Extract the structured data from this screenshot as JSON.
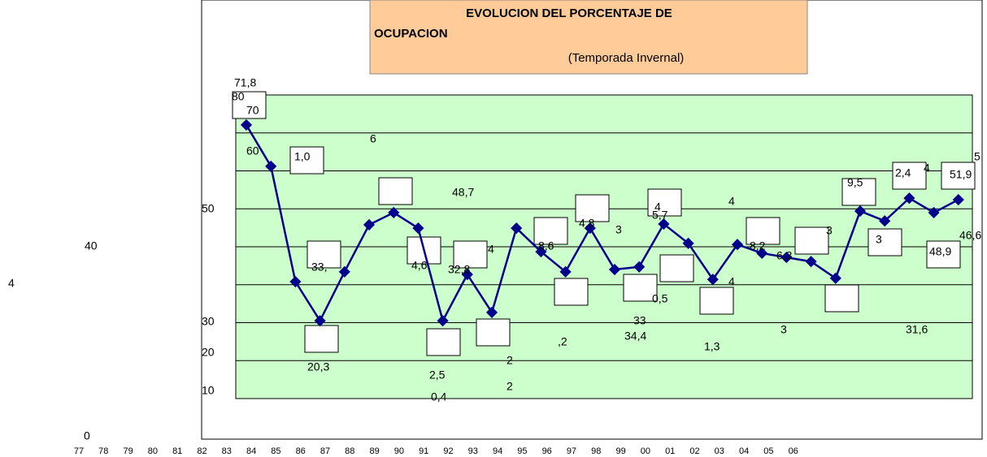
{
  "chart_data": {
    "type": "line",
    "title": "EVOLUCION DEL PORCENTAJE DE",
    "title_line2": "OCUPACION",
    "subtitle": "(Temporada Invernal)",
    "categories": [
      "77",
      "78",
      "79",
      "80",
      "81",
      "82",
      "83",
      "84",
      "85",
      "86",
      "87",
      "88",
      "89",
      "90",
      "91",
      "92",
      "93",
      "94",
      "95",
      "96",
      "97",
      "98",
      "99",
      "00",
      "01",
      "02",
      "03",
      "04",
      "05",
      "06"
    ],
    "series": [
      {
        "color": "#00008b",
        "values": [
          72.1,
          61.2,
          30.8,
          20.5,
          33.4,
          45.8,
          49.0,
          44.9,
          20.5,
          32.7,
          22.7,
          44.9,
          38.7,
          33.4,
          44.9,
          34.0,
          34.7,
          46.0,
          40.9,
          31.4,
          40.6,
          38.3,
          37.2,
          36.1,
          31.7,
          49.4,
          46.8,
          52.8,
          49.0,
          52.4
        ]
      }
    ],
    "ylim": [
      0,
      80
    ],
    "yticks": [
      10,
      20,
      30,
      40,
      50,
      60,
      70
    ],
    "grid": true,
    "plot_color": "#ccffcc",
    "title_box_color": "#ffcc99",
    "annotations": [
      "80",
      "71,8",
      "70",
      "60",
      "1,0",
      "6",
      "48,7",
      "50",
      "40",
      "4",
      "33,",
      "4,6",
      "32,8",
      "4",
      "8,6",
      "4,8",
      "3",
      "4",
      "5,7",
      "4",
      "8,2",
      "6,3",
      "3",
      "9,5",
      "2,4",
      "4",
      "51,9",
      "5",
      "3",
      "46,6",
      "48,9",
      "0,5",
      "4",
      "30",
      "20",
      "10",
      "0",
      "20,3",
      "33",
      "34,4",
      ",2",
      "1,3",
      "3",
      "31,6",
      "2",
      "2,5",
      "0,4",
      "2"
    ]
  }
}
